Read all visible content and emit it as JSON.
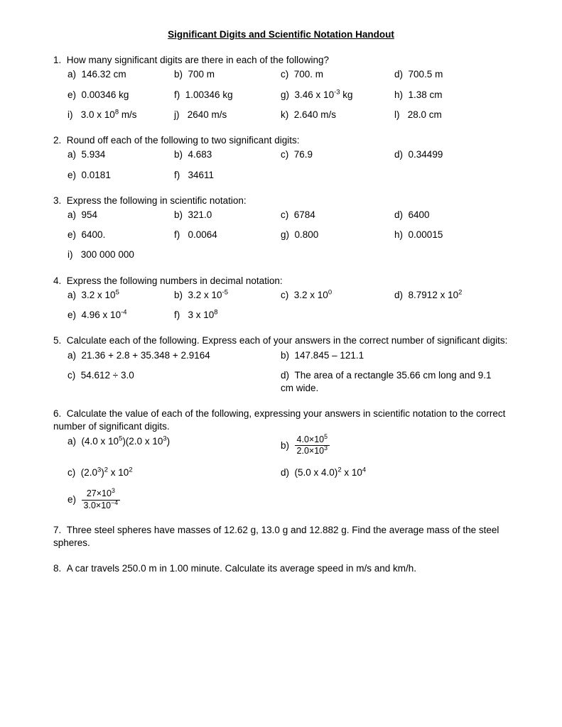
{
  "title": "Significant Digits and Scientific Notation Handout",
  "q1": {
    "stem": "How many significant digits are there in each of the following?",
    "items": {
      "a": "146.32 cm",
      "b": "700 m",
      "c": "700. m",
      "d": "700.5 m",
      "e": "0.00346 kg",
      "f": "1.00346 kg",
      "g_pre": "3.46 x 10",
      "g_exp": "-3",
      "g_post": " kg",
      "h": "1.38 cm",
      "i_pre": "3.0 x 10",
      "i_exp": "8",
      "i_post": " m/s",
      "j": "2640 m/s",
      "k": "2.640 m/s",
      "l": "28.0 cm"
    }
  },
  "q2": {
    "stem": "Round off each of the following to two significant digits:",
    "items": {
      "a": "5.934",
      "b": "4.683",
      "c": "76.9",
      "d": "0.34499",
      "e": "0.0181",
      "f": "34611"
    }
  },
  "q3": {
    "stem": "Express the following in scientific notation:",
    "items": {
      "a": "954",
      "b": "321.0",
      "c": "6784",
      "d": "6400",
      "e": "6400.",
      "f": "0.0064",
      "g": "0.800",
      "h": "0.00015",
      "i": "300 000 000"
    }
  },
  "q4": {
    "stem": "Express the following numbers in decimal notation:",
    "a_pre": "3.2 x 10",
    "a_exp": "5",
    "b_pre": "3.2 x 10",
    "b_exp": "-5",
    "c_pre": "3.2 x 10",
    "c_exp": "0",
    "d_pre": "8.7912 x 10",
    "d_exp": "2",
    "e_pre": "4.96 x 10",
    "e_exp": "-4",
    "f_pre": "3 x 10",
    "f_exp": "8"
  },
  "q5": {
    "stem": "Calculate each of the following. Express each of your answers in the correct number of significant digits:",
    "a": "21.36 + 2.8 + 35.348 + 2.9164",
    "b": "147.845 – 121.1",
    "c": "54.612 ÷ 3.0",
    "d": "The area of a rectangle 35.66 cm long and 9.1 cm wide."
  },
  "q6": {
    "stem": "Calculate the value of each of the following, expressing your answers in scientific notation to the correct number of significant digits.",
    "a_txt1": "(4.0 x 10",
    "a_exp1": "5",
    "a_txt2": ")(2.0 x 10",
    "a_exp2": "3",
    "a_txt3": ")",
    "b_num_pre": "4.0×10",
    "b_num_exp": "5",
    "b_den_pre": "2.0×10",
    "b_den_exp": "3",
    "c_txt1": "(2.0",
    "c_exp1": "3",
    "c_txt2": ")",
    "c_exp2": "2",
    "c_txt3": " x 10",
    "c_exp3": "2",
    "d_txt1": "(5.0 x 4.0)",
    "d_exp1": "2",
    "d_txt2": " x 10",
    "d_exp2": "4",
    "e_num_pre": "27×10",
    "e_num_exp": "3",
    "e_den_pre": "3.0×10",
    "e_den_exp": "−4"
  },
  "q7": "Three steel spheres have masses of 12.62 g, 13.0 g and 12.882 g. Find the average mass of the steel spheres.",
  "q8": "A car travels 250.0 m in 1.00 minute. Calculate its average speed in m/s and km/h.",
  "labels": {
    "a": "a)",
    "b": "b)",
    "c": "c)",
    "d": "d)",
    "e": "e)",
    "f": "f)",
    "g": "g)",
    "h": "h)",
    "i": "i)",
    "j": "j)",
    "k": "k)",
    "l": "l)"
  }
}
